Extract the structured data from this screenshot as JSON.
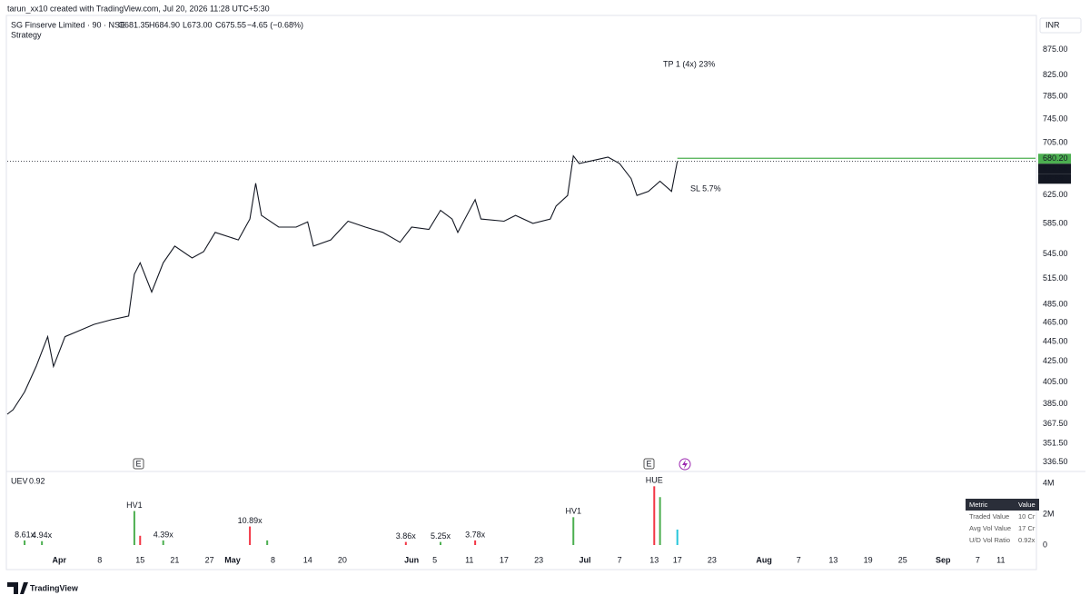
{
  "header": {
    "credit": "tarun_xx10 created with TradingView.com, Jul 20, 2026 11:28 UTC+5:30",
    "symbol": "SG Finserve Limited · 90 · NSE",
    "open": "O681.35",
    "high": "H684.90",
    "low": "L673.00",
    "close": "C675.55",
    "change": "−4.65 (−0.68%)",
    "study": "Strategy",
    "currency": "INR"
  },
  "chart_data": [
    {
      "type": "line",
      "log_scale": true,
      "color": "#131722",
      "x": [
        "2026-03-23",
        "2026-03-24",
        "2026-03-26",
        "2026-03-28",
        "2026-03-30",
        "2026-03-31",
        "2026-04-02",
        "2026-04-04",
        "2026-04-07",
        "2026-04-10",
        "2026-04-13",
        "2026-04-14",
        "2026-04-15",
        "2026-04-17",
        "2026-04-19",
        "2026-04-21",
        "2026-04-24",
        "2026-04-26",
        "2026-04-28",
        "2026-05-02",
        "2026-05-04",
        "2026-05-05",
        "2026-05-06",
        "2026-05-09",
        "2026-05-12",
        "2026-05-14",
        "2026-05-15",
        "2026-05-18",
        "2026-05-21",
        "2026-05-24",
        "2026-05-27",
        "2026-05-30",
        "2026-06-01",
        "2026-06-04",
        "2026-06-06",
        "2026-06-08",
        "2026-06-09",
        "2026-06-12",
        "2026-06-13",
        "2026-06-17",
        "2026-06-19",
        "2026-06-22",
        "2026-06-25",
        "2026-06-26",
        "2026-06-28",
        "2026-06-29",
        "2026-06-30",
        "2026-07-03",
        "2026-07-05",
        "2026-07-07",
        "2026-07-09",
        "2026-07-10",
        "2026-07-12",
        "2026-07-14",
        "2026-07-16",
        "2026-07-17"
      ],
      "values": [
        376,
        380,
        396,
        420,
        450,
        420,
        450,
        455,
        463,
        468,
        472,
        520,
        534,
        499,
        534,
        555,
        540,
        548,
        573,
        563,
        591,
        642,
        596,
        580,
        580,
        587,
        555,
        563,
        588,
        580,
        573,
        560,
        580,
        577,
        603,
        591,
        573,
        618,
        591,
        588,
        596,
        585,
        591,
        609,
        624,
        684,
        672,
        678,
        682,
        672,
        649,
        624,
        630,
        645,
        630,
        675.55
      ],
      "xlim": [
        "2026-03-23",
        "2026-09-17"
      ],
      "xticks": [
        {
          "value": "2026-04-01",
          "label": "Apr"
        },
        {
          "value": "2026-04-08",
          "label": "8"
        },
        {
          "value": "2026-04-15",
          "label": "15"
        },
        {
          "value": "2026-04-21",
          "label": "21"
        },
        {
          "value": "2026-04-27",
          "label": "27"
        },
        {
          "value": "2026-05-01",
          "label": "May"
        },
        {
          "value": "2026-05-08",
          "label": "8"
        },
        {
          "value": "2026-05-14",
          "label": "14"
        },
        {
          "value": "2026-05-20",
          "label": "20"
        },
        {
          "value": "2026-06-01",
          "label": "Jun"
        },
        {
          "value": "2026-06-05",
          "label": "5"
        },
        {
          "value": "2026-06-11",
          "label": "11"
        },
        {
          "value": "2026-06-17",
          "label": "17"
        },
        {
          "value": "2026-06-23",
          "label": "23"
        },
        {
          "value": "2026-07-01",
          "label": "Jul"
        },
        {
          "value": "2026-07-07",
          "label": "7"
        },
        {
          "value": "2026-07-13",
          "label": "13"
        },
        {
          "value": "2026-07-17",
          "label": "17"
        },
        {
          "value": "2026-07-23",
          "label": "23"
        },
        {
          "value": "2026-08-01",
          "label": "Aug"
        },
        {
          "value": "2026-08-07",
          "label": "7"
        },
        {
          "value": "2026-08-13",
          "label": "13"
        },
        {
          "value": "2026-08-19",
          "label": "19"
        },
        {
          "value": "2026-08-25",
          "label": "25"
        },
        {
          "value": "2026-09-01",
          "label": "Sep"
        },
        {
          "value": "2026-09-07",
          "label": "7"
        },
        {
          "value": "2026-09-11",
          "label": "11"
        }
      ],
      "ylim": [
        330,
        945
      ],
      "yticks": [
        {
          "value": 875,
          "label": "875.00"
        },
        {
          "value": 825,
          "label": "825.00"
        },
        {
          "value": 785,
          "label": "785.00"
        },
        {
          "value": 745,
          "label": "745.00"
        },
        {
          "value": 705,
          "label": "705.00"
        },
        {
          "value": 625,
          "label": "625.00"
        },
        {
          "value": 585,
          "label": "585.00"
        },
        {
          "value": 545,
          "label": "545.00"
        },
        {
          "value": 515,
          "label": "515.00"
        },
        {
          "value": 485,
          "label": "485.00"
        },
        {
          "value": 465,
          "label": "465.00"
        },
        {
          "value": 445,
          "label": "445.00"
        },
        {
          "value": 425,
          "label": "425.00"
        },
        {
          "value": 405,
          "label": "405.00"
        },
        {
          "value": 385,
          "label": "385.00"
        },
        {
          "value": 367.5,
          "label": "367.50"
        },
        {
          "value": 351.5,
          "label": "351.50"
        },
        {
          "value": 336.5,
          "label": "336.50"
        }
      ],
      "price_lines": [
        {
          "value": 680.2,
          "label": "680.20",
          "color": "#4caf50"
        },
        {
          "value": 675.55,
          "label": "675.55",
          "color": "#131722"
        }
      ],
      "countdown": "46:59",
      "annotations": [
        {
          "text": "TP 1 (4x) 23%",
          "color": "#4caf50"
        },
        {
          "text": "SL 5.7%",
          "color": "#f23645"
        }
      ]
    },
    {
      "type": "bar",
      "indicator": "UEV",
      "indicator_value": "0.92",
      "x": [
        "2026-03-26",
        "2026-03-29",
        "2026-04-14",
        "2026-04-15",
        "2026-04-19",
        "2026-05-04",
        "2026-05-07",
        "2026-05-31",
        "2026-06-06",
        "2026-06-12",
        "2026-06-29",
        "2026-07-13",
        "2026-07-14",
        "2026-07-17"
      ],
      "values": [
        300000,
        250000,
        2200000,
        600000,
        300000,
        1200000,
        300000,
        200000,
        200000,
        300000,
        1800000,
        3800000,
        3100000,
        1000000
      ],
      "colors": [
        "#4caf50",
        "#4caf50",
        "#4caf50",
        "#f23645",
        "#4caf50",
        "#f23645",
        "#4caf50",
        "#f23645",
        "#4caf50",
        "#f23645",
        "#4caf50",
        "#f23645",
        "#4caf50",
        "#26c6da"
      ],
      "labels": [
        "8.61x",
        "4.94x",
        "HV1",
        null,
        "4.39x",
        "10.89x",
        null,
        "3.86x",
        "5.25x",
        "3.78x",
        "HV1",
        "HUE",
        null,
        null
      ],
      "label_colors": [
        "#555555",
        "#555555",
        "#4caf50",
        null,
        "#555555",
        "#f23645",
        null,
        "#f23645",
        "#555555",
        "#f23645",
        "#4caf50",
        "#4caf50",
        null,
        null
      ],
      "ylim": [
        0,
        4700000
      ],
      "yticks": [
        0,
        {
          "value": 2000000,
          "label": "2M"
        },
        {
          "value": 4000000,
          "label": "4M"
        }
      ]
    }
  ],
  "table": {
    "header": [
      "Metric",
      "Value"
    ],
    "rows": [
      [
        "Traded Value",
        "10 Cr"
      ],
      [
        "Avg Vol Value",
        "17 Cr"
      ],
      [
        "U/D Vol Ratio",
        "0.92x"
      ]
    ]
  },
  "footer": {
    "brand": "TradingView"
  }
}
